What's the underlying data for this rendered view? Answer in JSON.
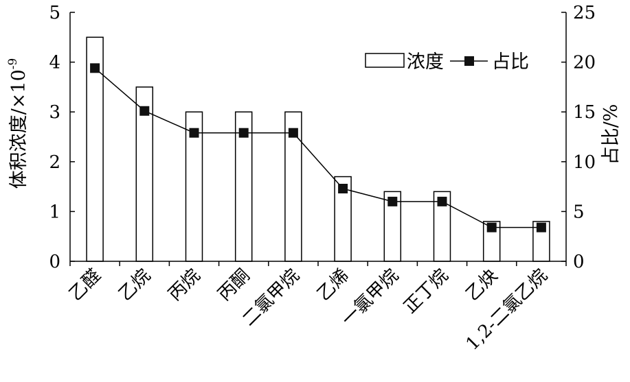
{
  "chart_data": {
    "type": "bar",
    "categories": [
      "乙醛",
      "乙烷",
      "丙烷",
      "丙酮",
      "二氯甲烷",
      "乙烯",
      "一氯甲烷",
      "正丁烷",
      "乙炔",
      "1,2-二氯乙烷"
    ],
    "series": [
      {
        "name": "浓度",
        "type": "bar",
        "axis": "left",
        "values": [
          4.5,
          3.5,
          3.0,
          3.0,
          3.0,
          1.7,
          1.4,
          1.4,
          0.8,
          0.8
        ]
      },
      {
        "name": "占比",
        "type": "line",
        "axis": "right",
        "values": [
          19.4,
          15.1,
          12.9,
          12.9,
          12.9,
          7.3,
          6.0,
          6.0,
          3.4,
          3.4
        ]
      }
    ],
    "ylabel_left": "体积浓度/×10",
    "ylabel_left_exponent": "-9",
    "ylabel_right": "占比/%",
    "ylim_left": [
      0,
      5
    ],
    "ylim_right": [
      0,
      25
    ],
    "yticks_left": [
      "0",
      "1",
      "2",
      "3",
      "4",
      "5"
    ],
    "yticks_right": [
      "0",
      "5",
      "10",
      "15",
      "20",
      "25"
    ],
    "grid": false,
    "legend_position": "top-right"
  }
}
